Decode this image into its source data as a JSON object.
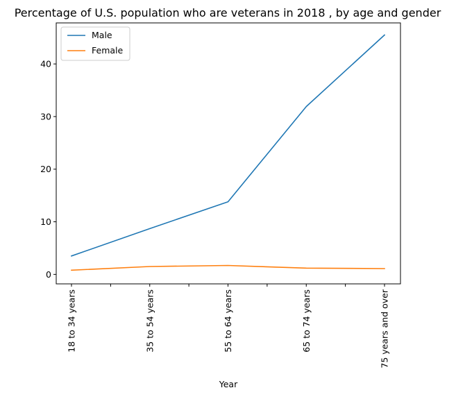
{
  "chart_data": {
    "type": "line",
    "title": "Percentage of U.S. population who are veterans in 2018 , by age and gender",
    "xlabel": "Year",
    "ylabel": "",
    "categories": [
      "18 to 34 years",
      "35 to 54 years",
      "55 to 64 years",
      "65 to 74 years",
      "75 years and over"
    ],
    "series": [
      {
        "name": "Male",
        "values": [
          3.5,
          8.7,
          13.8,
          31.9,
          45.5
        ],
        "color": "#1f77b4"
      },
      {
        "name": "Female",
        "values": [
          0.8,
          1.5,
          1.7,
          1.2,
          1.1
        ],
        "color": "#ff7f0e"
      }
    ],
    "ylim": [
      -1.8,
      47.8
    ],
    "yticks": [
      0,
      10,
      20,
      30,
      40
    ],
    "grid": false,
    "legend_position": "top-left"
  }
}
